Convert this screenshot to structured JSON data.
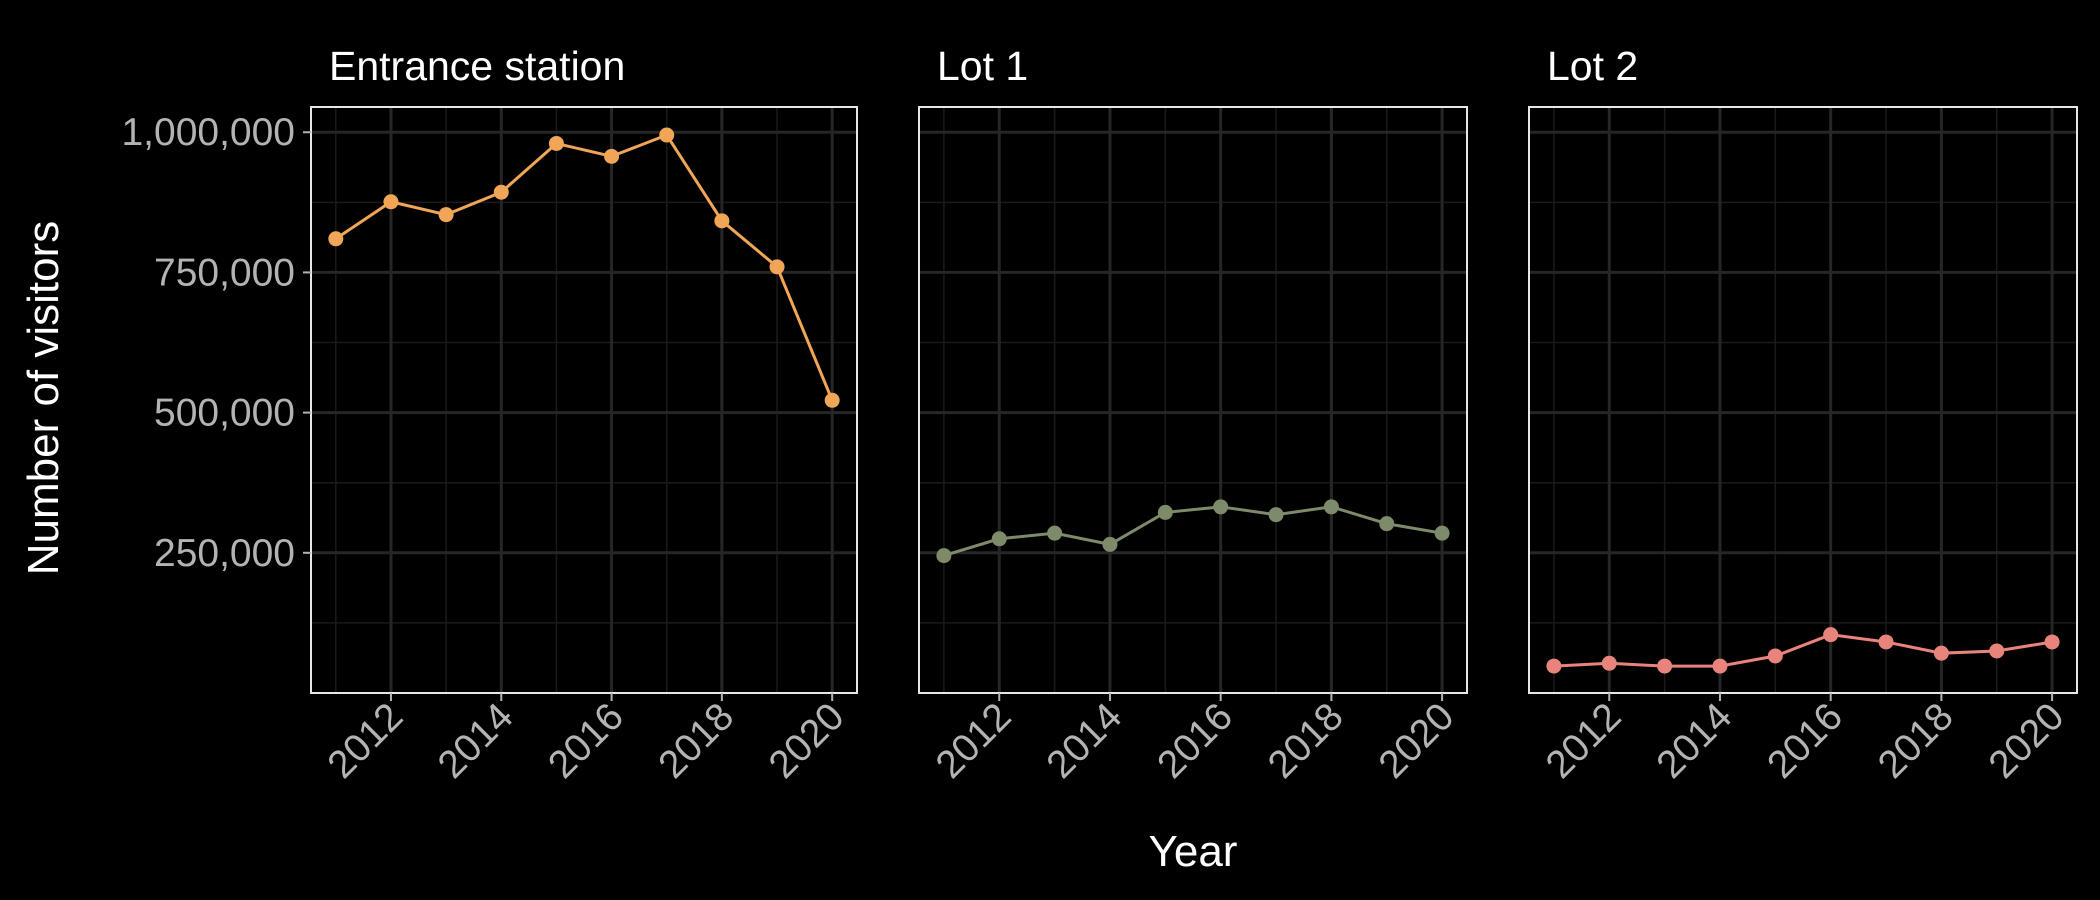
{
  "chart_data": {
    "type": "line",
    "facets": true,
    "x": [
      2011,
      2012,
      2013,
      2014,
      2015,
      2016,
      2017,
      2018,
      2019,
      2020
    ],
    "x_tick_labels": [
      "2012",
      "2014",
      "2016",
      "2018",
      "2020"
    ],
    "x_ticks": [
      2012,
      2014,
      2016,
      2018,
      2020
    ],
    "xlim": [
      2010.55,
      2020.45
    ],
    "xlabel": "Year",
    "ylabel": "Number of visitors",
    "ylim": [
      0,
      1045000
    ],
    "y_ticks": [
      250000,
      500000,
      750000,
      1000000
    ],
    "y_tick_labels": [
      "250,000",
      "500,000",
      "750,000",
      "1,000,000"
    ],
    "grid": true,
    "legend": "none",
    "series": [
      {
        "name": "Entrance station",
        "color": "#f0a656",
        "values": [
          810000,
          876000,
          853000,
          893000,
          980000,
          957000,
          995000,
          842000,
          760000,
          522000
        ]
      },
      {
        "name": "Lot 1",
        "color": "#7d8b6a",
        "values": [
          245000,
          275000,
          285000,
          265000,
          322000,
          332000,
          318000,
          332000,
          302000,
          285000
        ]
      },
      {
        "name": "Lot 2",
        "color": "#e8847c",
        "values": [
          48000,
          53000,
          48000,
          48000,
          66000,
          104000,
          91000,
          71000,
          75000,
          91000
        ]
      }
    ]
  }
}
